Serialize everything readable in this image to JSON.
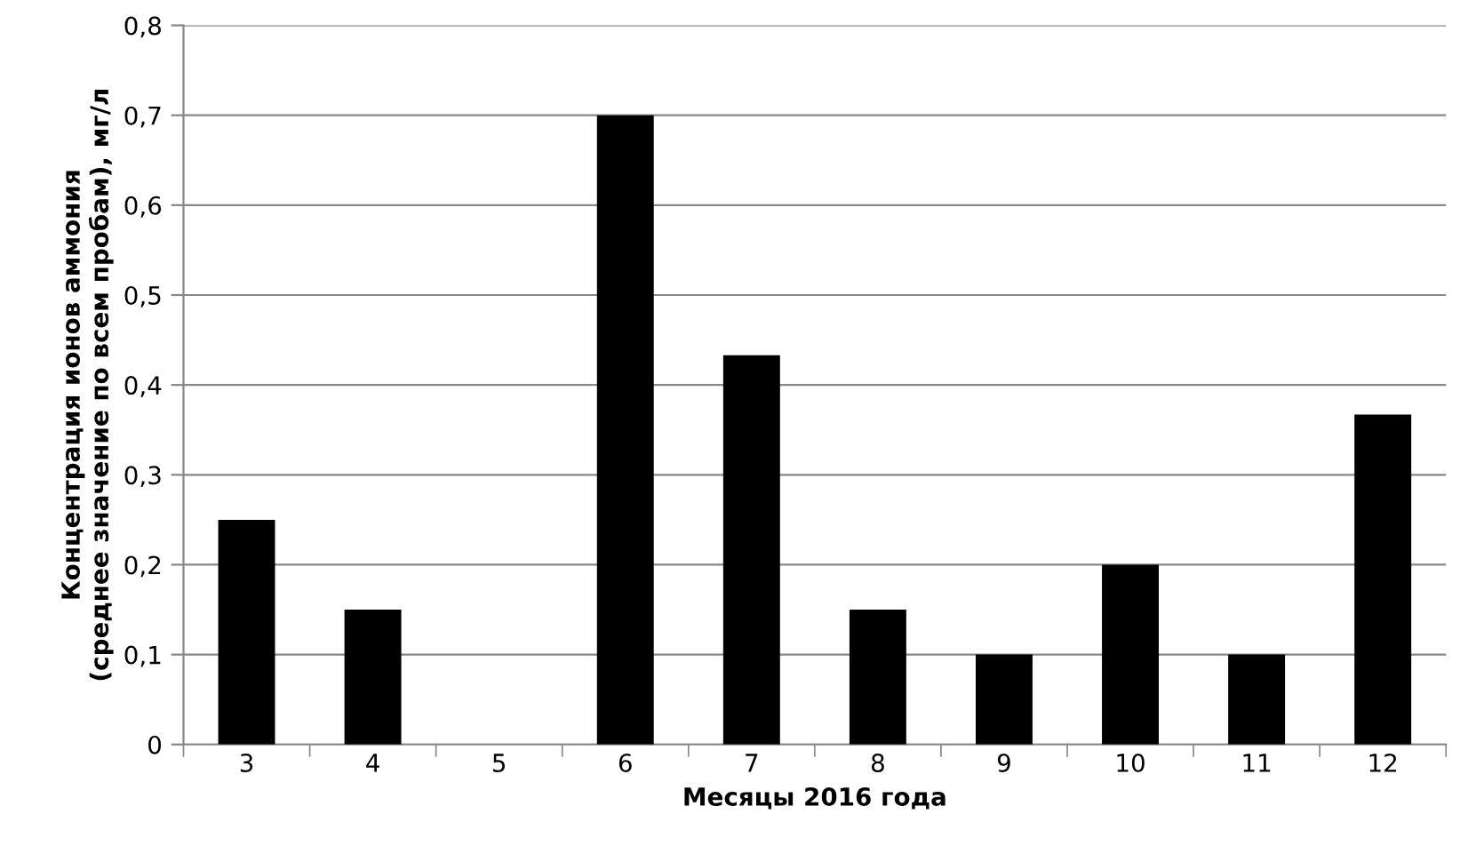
{
  "chart_data": {
    "type": "bar",
    "xlabel": "Месяцы 2016 года",
    "ylabel": "Концентрация ионов аммония\n(среднее значение по всем пробам), мг/л",
    "categories": [
      "3",
      "4",
      "5",
      "6",
      "7",
      "8",
      "9",
      "10",
      "11",
      "12"
    ],
    "values": [
      0.25,
      0.15,
      0,
      0.7,
      0.433,
      0.15,
      0.1,
      0.2,
      0.1,
      0.367
    ],
    "color": "#000000",
    "ylim": [
      0,
      0.8
    ],
    "yticks": [
      0,
      {
        "value": 0.1,
        "label": "0,1"
      },
      {
        "value": 0.2,
        "label": "0,2"
      },
      {
        "value": 0.3,
        "label": "0,3"
      },
      {
        "value": 0.4,
        "label": "0,4"
      },
      {
        "value": 0.5,
        "label": "0,5"
      },
      {
        "value": 0.6,
        "label": "0,6"
      },
      {
        "value": 0.7,
        "label": "0,7"
      },
      {
        "value": 0.8,
        "label": "0,8"
      }
    ],
    "grid": "y"
  }
}
